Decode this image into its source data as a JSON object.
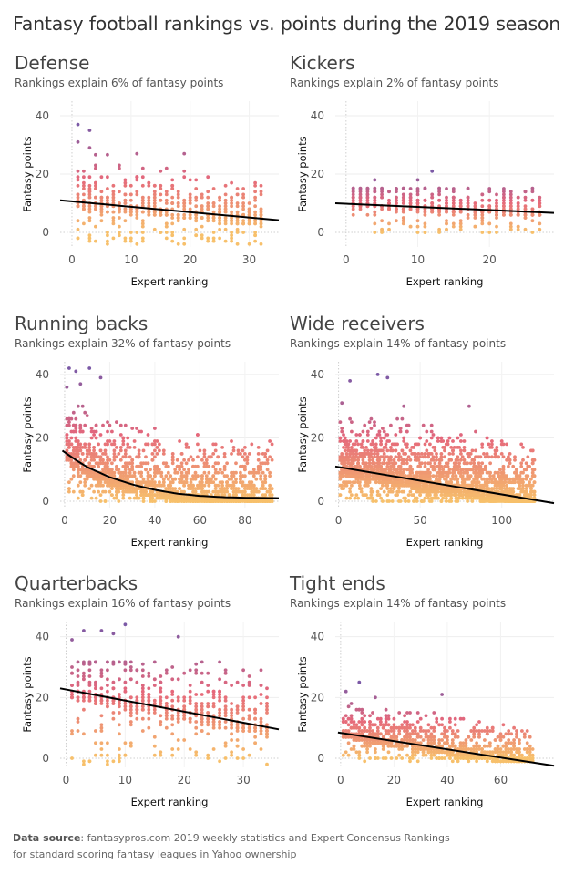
{
  "title": "Fantasy football rankings vs. points during the 2019 season",
  "footer": {
    "source_label": "Data source",
    "source_line1": ": fantasypros.com 2019 weekly statistics and Expert Concensus Rankings",
    "source_line2": "for standard scoring fantasy leagues in Yahoo ownership"
  },
  "colors": {
    "high": "#7b59a6",
    "mid": "#e5687b",
    "low": "#f7c06b",
    "trend": "#000000"
  },
  "chart_data": [
    {
      "type": "scatter",
      "id": "defense",
      "title": "Defense",
      "subtitle": "Rankings explain 6% of fantasy points",
      "xlabel": "Expert ranking",
      "ylabel": "Fantasy points",
      "xlim": [
        -2,
        35
      ],
      "ylim": [
        -5,
        45
      ],
      "xticks": [
        0,
        10,
        20,
        30
      ],
      "yticks": [
        0,
        20,
        40
      ],
      "n_ranks": 32,
      "per_rank": 17,
      "max_points": 37,
      "min_points": -4,
      "trend_type": "linear",
      "trend": [
        [
          -2,
          11
        ],
        [
          35,
          4.2
        ]
      ],
      "highlights": [
        [
          1,
          37
        ],
        [
          3,
          35
        ],
        [
          1,
          31
        ],
        [
          3,
          29
        ],
        [
          11,
          27
        ],
        [
          19,
          27
        ]
      ]
    },
    {
      "type": "scatter",
      "id": "kickers",
      "title": "Kickers",
      "subtitle": "Rankings explain 2% of fantasy points",
      "xlabel": "Expert ranking",
      "ylabel": "Fantasy points",
      "xlim": [
        -1.5,
        29
      ],
      "ylim": [
        -5,
        45
      ],
      "xticks": [
        0,
        10,
        20
      ],
      "yticks": [
        0,
        20,
        40
      ],
      "n_ranks": 27,
      "per_rank": 17,
      "max_points": 21,
      "min_points": 0,
      "trend_type": "linear",
      "trend": [
        [
          -1.5,
          10
        ],
        [
          29,
          6.7
        ]
      ],
      "highlights": [
        [
          12,
          21
        ],
        [
          4,
          18
        ],
        [
          10,
          18
        ]
      ]
    },
    {
      "type": "scatter",
      "id": "running-backs",
      "title": "Running backs",
      "subtitle": "Rankings explain 32% of fantasy points",
      "xlabel": "Expert ranking",
      "ylabel": "Fantasy points",
      "xlim": [
        -2,
        95
      ],
      "ylim": [
        -2,
        44
      ],
      "xticks": [
        0,
        20,
        40,
        60,
        80
      ],
      "yticks": [
        0,
        20,
        40
      ],
      "n_ranks": 92,
      "per_rank": 17,
      "max_points": 42,
      "min_points": 0,
      "trend_type": "curve",
      "trend": [
        [
          -1,
          16
        ],
        [
          5,
          13
        ],
        [
          10,
          10.8
        ],
        [
          20,
          7.6
        ],
        [
          30,
          5.3
        ],
        [
          40,
          3.6
        ],
        [
          50,
          2.4
        ],
        [
          60,
          1.7
        ],
        [
          70,
          1.3
        ],
        [
          80,
          1.1
        ],
        [
          95,
          1
        ]
      ],
      "highlights": [
        [
          2,
          42
        ],
        [
          5,
          41
        ],
        [
          11,
          42
        ],
        [
          16,
          39
        ],
        [
          1,
          36
        ],
        [
          7,
          37
        ]
      ]
    },
    {
      "type": "scatter",
      "id": "wide-receivers",
      "title": "Wide receivers",
      "subtitle": "Rankings explain 14% of fantasy points",
      "xlabel": "Expert ranking",
      "ylabel": "Fantasy points",
      "xlim": [
        -2,
        132
      ],
      "ylim": [
        -2,
        44
      ],
      "xticks": [
        0,
        50,
        100
      ],
      "yticks": [
        0,
        20,
        40
      ],
      "n_ranks": 120,
      "per_rank": 17,
      "max_points": 40,
      "min_points": 0,
      "trend_type": "linear",
      "trend": [
        [
          -2,
          11
        ],
        [
          132,
          -0.6
        ]
      ],
      "highlights": [
        [
          24,
          40
        ],
        [
          30,
          39
        ],
        [
          7,
          38
        ],
        [
          2,
          31
        ],
        [
          40,
          30
        ],
        [
          80,
          30
        ]
      ]
    },
    {
      "type": "scatter",
      "id": "quarterbacks",
      "title": "Quarterbacks",
      "subtitle": "Rankings explain 16% of fantasy points",
      "xlabel": "Expert ranking",
      "ylabel": "Fantasy points",
      "xlim": [
        -1,
        36
      ],
      "ylim": [
        -3,
        45
      ],
      "xticks": [
        0,
        10,
        20,
        30
      ],
      "yticks": [
        0,
        20,
        40
      ],
      "n_ranks": 34,
      "per_rank": 17,
      "max_points": 44,
      "min_points": -2,
      "trend_type": "linear",
      "trend": [
        [
          -1,
          23
        ],
        [
          36,
          9.5
        ]
      ],
      "highlights": [
        [
          10,
          44
        ],
        [
          3,
          42
        ],
        [
          6,
          42
        ],
        [
          19,
          40
        ],
        [
          1,
          39
        ],
        [
          8,
          41
        ]
      ]
    },
    {
      "type": "scatter",
      "id": "tight-ends",
      "title": "Tight ends",
      "subtitle": "Rankings explain 14% of fantasy points",
      "xlabel": "Expert ranking",
      "ylabel": "Fantasy points",
      "xlim": [
        -2,
        80
      ],
      "ylim": [
        -3,
        45
      ],
      "xticks": [
        0,
        20,
        40,
        60
      ],
      "yticks": [
        0,
        20,
        40
      ],
      "n_ranks": 72,
      "per_rank": 14,
      "max_points": 25,
      "min_points": -1,
      "trend_type": "linear",
      "trend": [
        [
          -1,
          8.5
        ],
        [
          80,
          -2.5
        ]
      ],
      "highlights": [
        [
          7,
          25
        ],
        [
          2,
          22
        ],
        [
          38,
          21
        ],
        [
          13,
          20
        ],
        [
          55,
          8
        ]
      ]
    }
  ]
}
